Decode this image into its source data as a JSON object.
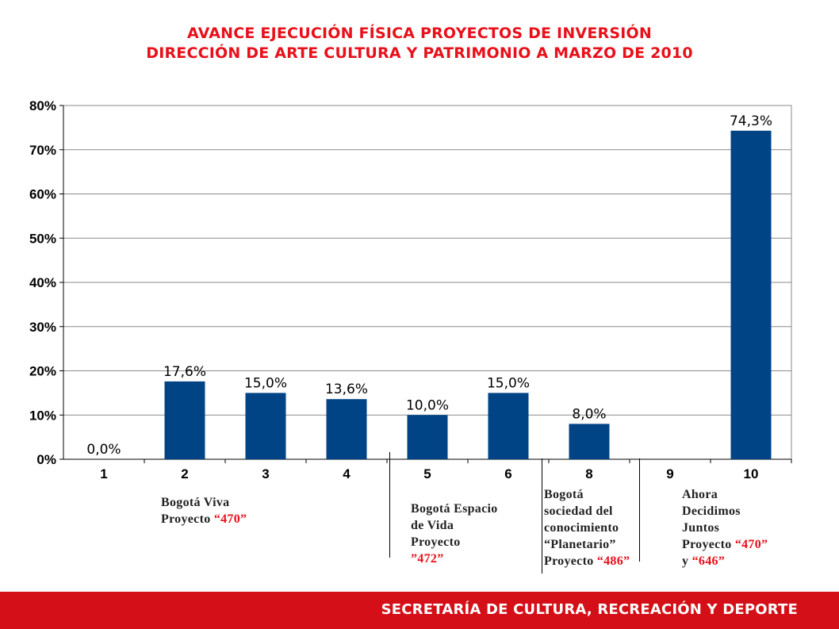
{
  "title_line1": "AVANCE EJECUCIÓN FÍSICA PROYECTOS DE INVERSIÓN",
  "title_line2": "DIRECCIÓN DE ARTE CULTURA Y PATRIMONIO A MARZO DE 2010",
  "chart_data": {
    "type": "bar",
    "categories": [
      "1",
      "2",
      "3",
      "4",
      "5",
      "6",
      "8",
      "9",
      "10"
    ],
    "values": [
      0.0,
      17.6,
      15.0,
      13.6,
      10.0,
      15.0,
      8.0,
      null,
      74.3
    ],
    "data_labels": [
      "0,0%",
      "17,6%",
      "15,0%",
      "13,6%",
      "10,0%",
      "15,0%",
      "8,0%",
      "",
      "74,3%"
    ],
    "yticks": [
      "0%",
      "10%",
      "20%",
      "30%",
      "40%",
      "50%",
      "60%",
      "70%",
      "80%"
    ],
    "ylim": [
      0,
      80
    ],
    "grid": true,
    "bar_color": "#004486",
    "title": "",
    "xlabel": "",
    "ylabel": ""
  },
  "annotations": {
    "g1": {
      "line1": "Bogotá Viva",
      "line2_prefix": "Proyecto ",
      "code": "“470”"
    },
    "g2": {
      "line1": "Bogotá Espacio",
      "line2": "de Vida",
      "line3": "Proyecto",
      "code": "”472”"
    },
    "g3": {
      "line1": "Bogotá",
      "line2": "sociedad del",
      "line3": "conocimiento",
      "line4": "“Planetario”",
      "line5_prefix": "Proyecto ",
      "code": "“486”"
    },
    "g4": {
      "line1": "Ahora",
      "line2": "Decidimos",
      "line3": "Juntos",
      "line4_prefix": "Proyecto ",
      "code1": "“470”",
      "line5_prefix": "y ",
      "code2": "“646”"
    }
  },
  "footer": {
    "text": "SECRETARÍA DE CULTURA, RECREACIÓN Y DEPORTE"
  },
  "colors": {
    "accent": "#e8101a",
    "footer_bg": "#d40f17",
    "bar": "#004486"
  }
}
